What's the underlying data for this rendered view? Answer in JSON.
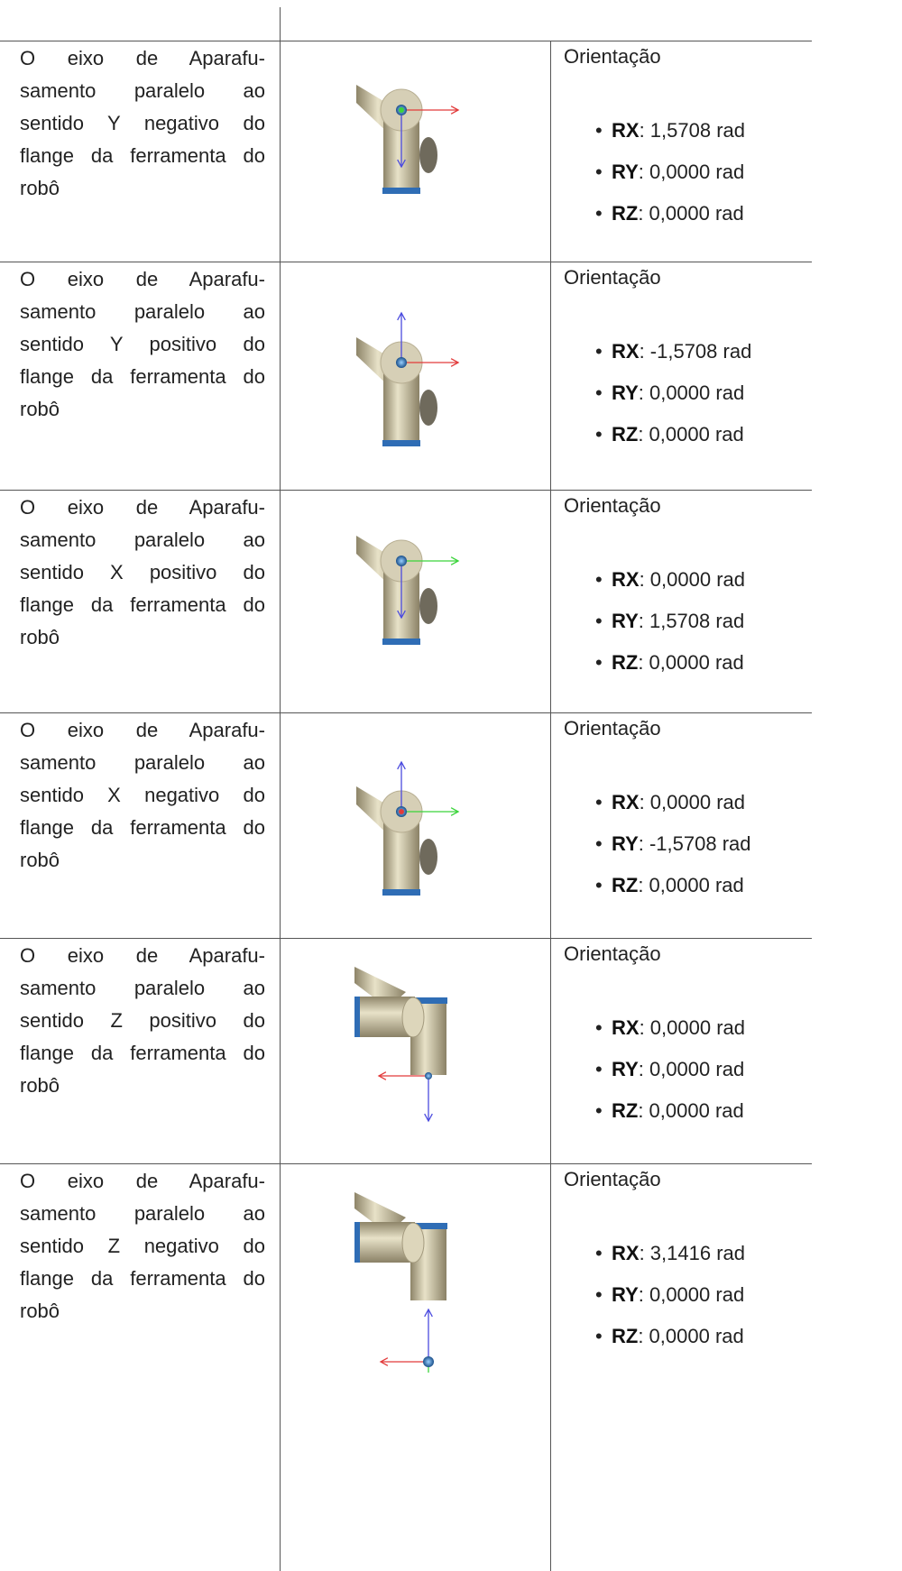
{
  "rows": [
    {
      "description": [
        "O eixo de Aparafu-",
        "samento paralelo ao",
        "sentido Y negativo do",
        "flange da ferramenta do",
        "robô"
      ],
      "heading": "Orientação",
      "items": [
        {
          "label": "RX",
          "value": ": 1,5708 rad"
        },
        {
          "label": "RY",
          "value": ": 0,0000 rad"
        },
        {
          "label": "RZ",
          "value": ": 0,0000 rad"
        }
      ]
    },
    {
      "description": [
        "O eixo de Aparafu-",
        "samento paralelo ao",
        "sentido Y positivo do",
        "flange da ferramenta do",
        "robô"
      ],
      "heading": "Orientação",
      "items": [
        {
          "label": "RX",
          "value": ": -1,5708 rad"
        },
        {
          "label": "RY",
          "value": ": 0,0000 rad"
        },
        {
          "label": "RZ",
          "value": ": 0,0000 rad"
        }
      ]
    },
    {
      "description": [
        "O eixo de Aparafu-",
        "samento paralelo ao",
        "sentido X positivo do",
        "flange da ferramenta do",
        "robô"
      ],
      "heading": "Orientação",
      "items": [
        {
          "label": "RX",
          "value": ": 0,0000 rad"
        },
        {
          "label": "RY",
          "value": ": 1,5708 rad"
        },
        {
          "label": "RZ",
          "value": ": 0,0000 rad"
        }
      ]
    },
    {
      "description": [
        "O eixo de Aparafu-",
        "samento paralelo ao",
        "sentido X negativo do",
        "flange da ferramenta do",
        "robô"
      ],
      "heading": "Orientação",
      "items": [
        {
          "label": "RX",
          "value": ": 0,0000 rad"
        },
        {
          "label": "RY",
          "value": ": -1,5708 rad"
        },
        {
          "label": "RZ",
          "value": ": 0,0000 rad"
        }
      ]
    },
    {
      "description": [
        "O eixo de Aparafu-",
        "samento paralelo ao",
        "sentido Z positivo do",
        "flange da ferramenta do",
        "robô"
      ],
      "heading": "Orientação",
      "items": [
        {
          "label": "RX",
          "value": ": 0,0000 rad"
        },
        {
          "label": "RY",
          "value": ": 0,0000 rad"
        },
        {
          "label": "RZ",
          "value": ": 0,0000 rad"
        }
      ]
    },
    {
      "description": [
        "O eixo de Aparafu-",
        "samento paralelo ao",
        "sentido Z negativo do",
        "flange da ferramenta do",
        "robô"
      ],
      "heading": "Orientação",
      "items": [
        {
          "label": "RX",
          "value": ": 3,1416 rad"
        },
        {
          "label": "RY",
          "value": ": 0,0000 rad"
        },
        {
          "label": "RZ",
          "value": ": 0,0000 rad"
        }
      ]
    }
  ]
}
